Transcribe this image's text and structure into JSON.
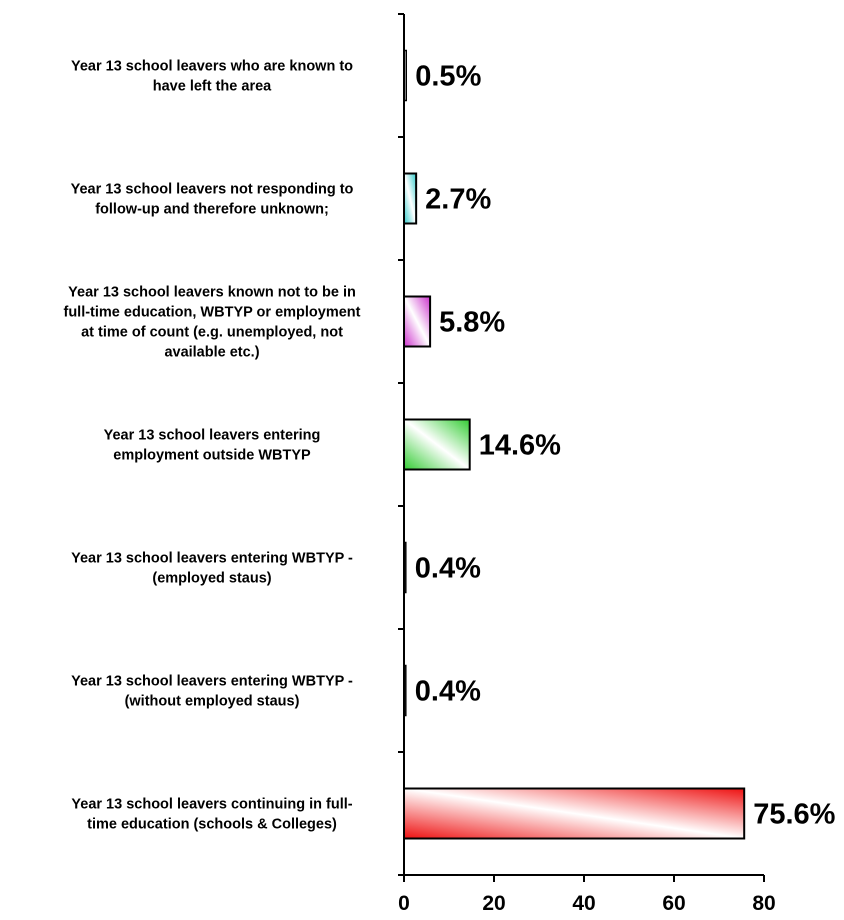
{
  "chart_data": {
    "type": "bar",
    "orientation": "horizontal",
    "categories": [
      "Year 13 school leavers who are known to have left the area",
      "Year 13 school leavers not responding to follow-up and therefore unknown;",
      "Year 13 school leavers known not to be in full-time education, WBTYP or employment at time of count (e.g. unemployed, not available etc.)",
      "Year 13 school leavers entering employment outside WBTYP",
      "Year 13 school leavers entering WBTYP - (employed staus)",
      "Year 13 school leavers entering WBTYP - (without employed staus)",
      "Year 13 school leavers continuing in full-time education (schools & Colleges)"
    ],
    "category_lines": [
      [
        "Year 13 school leavers who are known to",
        "have left the area"
      ],
      [
        "Year 13 school leavers not responding to",
        "follow-up and therefore unknown;"
      ],
      [
        "Year 13 school leavers known not to be in",
        "full-time education, WBTYP or employment",
        "at time of count (e.g. unemployed, not",
        "available etc.)"
      ],
      [
        "Year 13 school leavers entering",
        "employment outside WBTYP"
      ],
      [
        "Year 13 school leavers entering WBTYP -",
        "(employed staus)"
      ],
      [
        "Year 13 school leavers entering WBTYP -",
        "(without employed staus)"
      ],
      [
        "Year 13 school leavers continuing in full-",
        "time education (schools & Colleges)"
      ]
    ],
    "values": [
      0.5,
      2.7,
      5.8,
      14.6,
      0.4,
      0.4,
      75.6
    ],
    "data_labels": [
      "0.5%",
      "2.7%",
      "5.8%",
      "14.6%",
      "0.4%",
      "0.4%",
      "75.6%"
    ],
    "bar_colors": [
      "#ffffff",
      "#33cccc",
      "#cc33cc",
      "#33cc33",
      "#ffffff",
      "#ffffff",
      "#ee1111"
    ],
    "xlim": [
      0,
      80
    ],
    "xticks": [
      0,
      20,
      40,
      60,
      80
    ],
    "title": "",
    "xlabel": "",
    "ylabel": "",
    "grid": false,
    "legend": "none"
  }
}
